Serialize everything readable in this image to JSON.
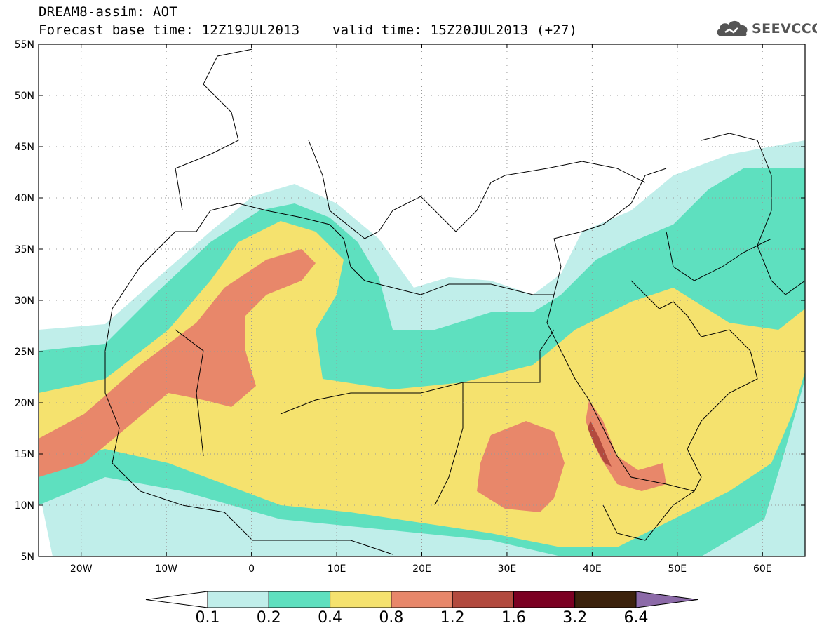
{
  "header": {
    "line1": "DREAM8-assim: AOT",
    "line2_left": "Forecast base time: 12Z19JUL2013",
    "line2_right": "valid time: 15Z20JUL2013 (+27)",
    "logo": "SEEVCCC"
  },
  "map": {
    "lon_range": [
      -25,
      65
    ],
    "lat_range": [
      5,
      55
    ],
    "lat_ticks": [
      "5N",
      "10N",
      "15N",
      "20N",
      "25N",
      "30N",
      "35N",
      "40N",
      "45N",
      "50N",
      "55N"
    ],
    "lon_ticks": [
      "20W",
      "10W",
      "0",
      "10E",
      "20E",
      "30E",
      "40E",
      "50E",
      "60E"
    ],
    "grid": "dotted"
  },
  "colorbar": {
    "labels": [
      "0.1",
      "0.2",
      "0.4",
      "0.8",
      "1.2",
      "1.6",
      "3.2",
      "6.4"
    ],
    "colors": [
      "#ffffff",
      "#c0eeea",
      "#5ee0bf",
      "#f5e26e",
      "#e8876a",
      "#b24a3e",
      "#7b0022",
      "#3c220c",
      "#8c6aa8"
    ]
  }
}
